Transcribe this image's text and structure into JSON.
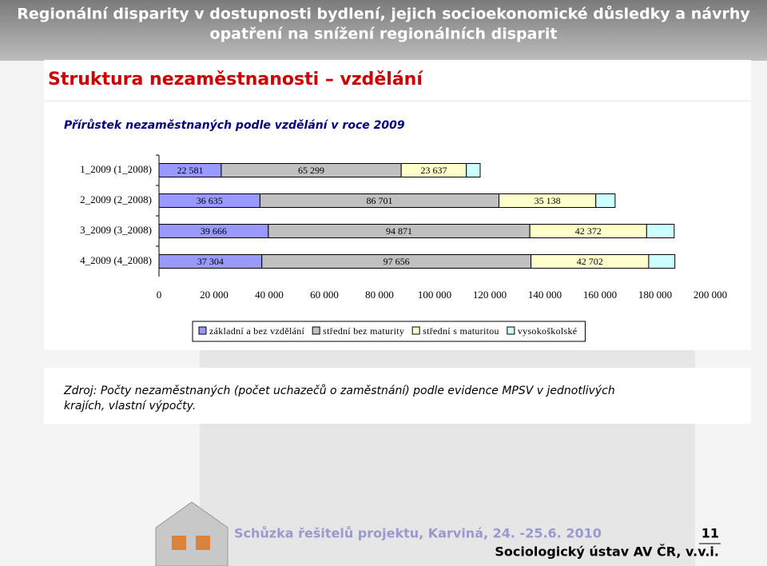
{
  "header": {
    "lines": [
      "Regionální disparity v dostupnosti bydlení, jejich socioekonomické důsledky a návrhy",
      "opatření na snížení regionálních disparit"
    ]
  },
  "slide": {
    "title": "Struktura nezaměstnanosti – vzdělání"
  },
  "chart_data": {
    "type": "stacked-bar-horizontal",
    "title": "Přírůstek nezaměstnaných podle vzdělání v roce 2009",
    "categories": [
      "1_2009 (1_2008)",
      "2_2009 (2_2008)",
      "3_2009 (3_2008)",
      "4_2009 (4_2008)"
    ],
    "series": [
      {
        "name": "základní a bez vzdělání",
        "color": "#9999ff",
        "values": [
          22581,
          36635,
          39666,
          37304
        ],
        "value_labels": [
          "22 581",
          "36 635",
          "39 666",
          "37 304"
        ]
      },
      {
        "name": "střední bez maturity",
        "color": "#c0c0c0",
        "values": [
          65299,
          86701,
          94871,
          97656
        ],
        "value_labels": [
          "65 299",
          "86 701",
          "94 871",
          "97 656"
        ]
      },
      {
        "name": "střední s maturitou",
        "color": "#ffffcc",
        "values": [
          23637,
          35138,
          42372,
          42702
        ],
        "value_labels": [
          "23 637",
          "35 138",
          "42 372",
          "42 702"
        ]
      },
      {
        "name": "vysokoškolské",
        "color": "#ccffff",
        "values": [
          5000,
          7000,
          10000,
          9500
        ]
      }
    ],
    "xlim": [
      0,
      200000
    ],
    "xticks": [
      0,
      {
        "value": 20000,
        "label": "20 000"
      },
      {
        "value": 40000,
        "label": "40 000"
      },
      {
        "value": 60000,
        "label": "60 000"
      },
      {
        "value": 80000,
        "label": "80 000"
      },
      {
        "value": 100000,
        "label": "100 000"
      },
      {
        "value": 120000,
        "label": "120 000"
      },
      {
        "value": 140000,
        "label": "140 000"
      },
      {
        "value": 160000,
        "label": "160 000"
      },
      {
        "value": 180000,
        "label": "180 000"
      },
      {
        "value": 200000,
        "label": "200 000"
      }
    ],
    "legend": "bottom"
  },
  "source": {
    "lines": [
      "Zdroj: Počty nezaměstnaných (počet uchazečů o zaměstnání) podle evidence MPSV v jednotlivých",
      "krajích, vlastní výpočty."
    ]
  },
  "footer": {
    "meeting": "Schůzka řešitelů projektu, Karviná, 24. -25.6. 2010",
    "page_number": 11,
    "institute": "Sociologický ústav AV ČR, v.v.i."
  }
}
